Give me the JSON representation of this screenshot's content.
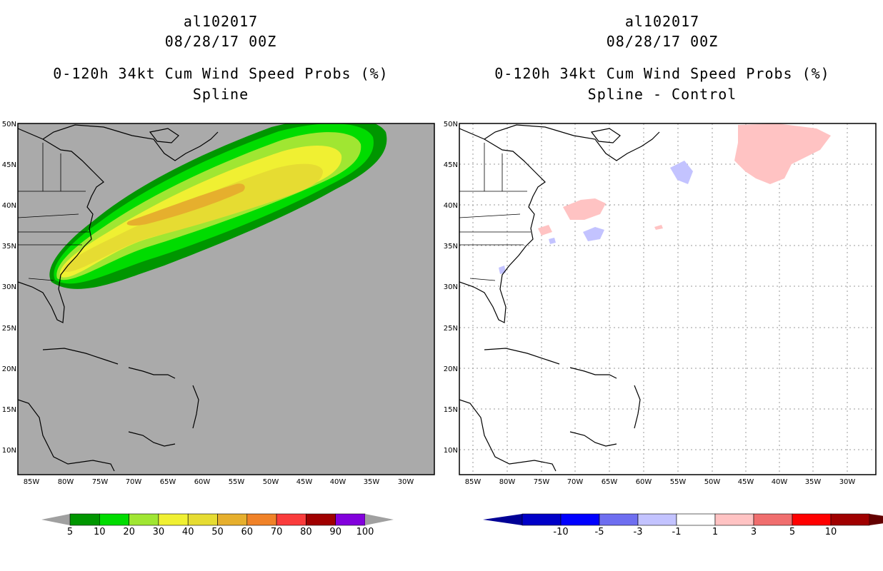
{
  "left": {
    "storm_id": "al102017",
    "datetime": "08/28/17 00Z",
    "title": "0-120h 34kt Cum Wind Speed Probs (%)",
    "subtitle": "Spline",
    "colorbar": {
      "labels": [
        "5",
        "10",
        "20",
        "30",
        "40",
        "50",
        "60",
        "70",
        "80",
        "90",
        "100"
      ],
      "colors": [
        "#009600",
        "#00dc00",
        "#a0e632",
        "#f0f032",
        "#e6dc32",
        "#e6af2d",
        "#f08228",
        "#fa3c3c",
        "#a00000",
        "#8200dc"
      ],
      "end_color": "#a0a0a0"
    }
  },
  "right": {
    "storm_id": "al102017",
    "datetime": "08/28/17 00Z",
    "title": "0-120h 34kt Cum Wind Speed Probs (%)",
    "subtitle": "Spline - Control",
    "colorbar": {
      "labels": [
        "-10",
        "-5",
        "-3",
        "-1",
        "1",
        "3",
        "5",
        "10"
      ],
      "colors": [
        "#0000c8",
        "#0000ff",
        "#6e6ef0",
        "#c3c3ff",
        "#ffffff",
        "#ffc3c3",
        "#f06e6e",
        "#ff0000",
        "#a00000"
      ],
      "low_end_color": "#000096",
      "high_end_color": "#640000"
    }
  },
  "map": {
    "lat_labels": [
      "50N",
      "45N",
      "40N",
      "35N",
      "30N",
      "25N",
      "20N",
      "15N",
      "10N"
    ],
    "lon_labels": [
      "85W",
      "80W",
      "75W",
      "70W",
      "65W",
      "60W",
      "55W",
      "50W",
      "45W",
      "40W",
      "35W",
      "30W"
    ],
    "background_left": "#aaaaaa",
    "background_right": "#ffffff"
  }
}
